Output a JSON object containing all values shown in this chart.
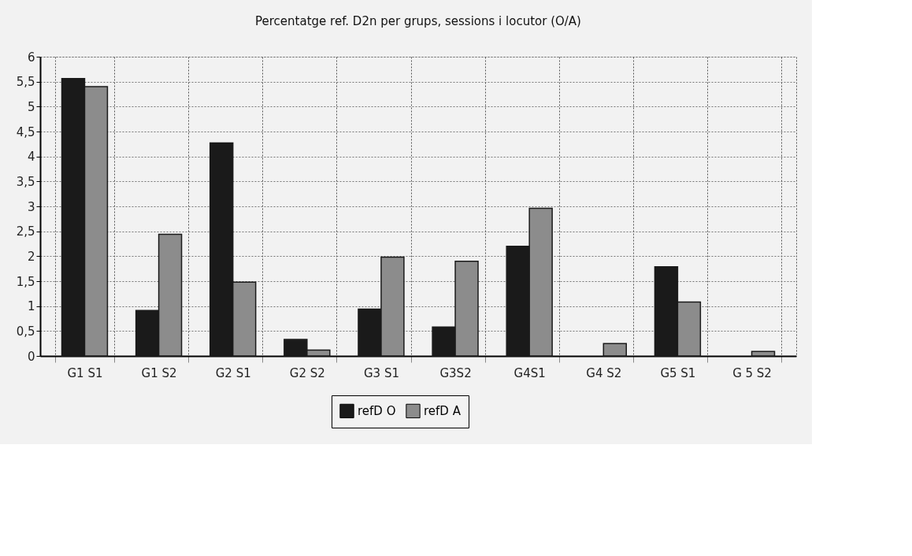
{
  "chart_data": {
    "type": "bar",
    "title": "Percentatge ref. D2n per grups, sessions i locutor (O/A)",
    "categories": [
      "G1  S1",
      "G1  S2",
      "G2  S1",
      "G2  S2",
      "G3  S1",
      "G3S2",
      "G4S1",
      "G4  S2",
      "G5  S1",
      "G 5  S2"
    ],
    "series": [
      {
        "name": "refD O",
        "color": "#1a1a1a",
        "values": [
          5.56,
          0.91,
          4.27,
          0.33,
          0.94,
          0.58,
          2.2,
          null,
          1.79,
          null
        ]
      },
      {
        "name": "refD A",
        "color": "#8c8c8c",
        "values": [
          5.4,
          2.44,
          1.48,
          0.12,
          1.98,
          1.9,
          2.96,
          0.25,
          1.08,
          0.09
        ]
      }
    ],
    "ylim": [
      0,
      6
    ],
    "yticks": [
      0,
      {
        "value": 0.5,
        "label": "0,5"
      },
      1,
      {
        "value": 1.5,
        "label": "1,5"
      },
      2,
      {
        "value": 2.5,
        "label": "2,5"
      },
      3,
      {
        "value": 3.5,
        "label": "3,5"
      },
      4,
      {
        "value": 4.5,
        "label": "4,5"
      },
      5,
      {
        "value": 5.5,
        "label": "5,5"
      },
      6
    ],
    "grid": true,
    "legend": "bottom"
  }
}
